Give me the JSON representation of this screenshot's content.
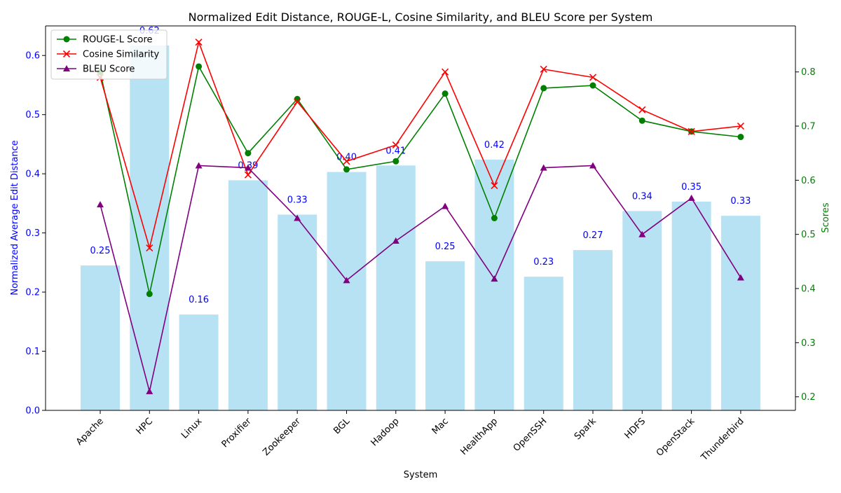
{
  "chart_data": {
    "type": "bar",
    "title": "Normalized Edit Distance, ROUGE-L, Cosine Similarity, and BLEU Score per System",
    "xlabel": "System",
    "ylabel_left": "Normalized Average Edit Distance",
    "ylabel_right": "Scores",
    "categories": [
      "Apache",
      "HPC",
      "Linux",
      "Proxifier",
      "Zookeeper",
      "BGL",
      "Hadoop",
      "Mac",
      "HealthApp",
      "OpenSSH",
      "Spark",
      "HDFS",
      "OpenStack",
      "Thunderbird"
    ],
    "bar_series": {
      "name": "Normalized Average Edit Distance",
      "color": "#87ceeb",
      "values": [
        0.245,
        0.617,
        0.162,
        0.389,
        0.331,
        0.403,
        0.414,
        0.252,
        0.424,
        0.226,
        0.271,
        0.337,
        0.353,
        0.329
      ],
      "labels": [
        "0.25",
        "0.62",
        "0.16",
        "0.39",
        "0.33",
        "0.40",
        "0.41",
        "0.25",
        "0.42",
        "0.23",
        "0.27",
        "0.34",
        "0.35",
        "0.33"
      ],
      "label_color": "#0000ff"
    },
    "line_series": [
      {
        "name": "ROUGE-L Score",
        "color": "#008000",
        "marker": "circle",
        "values": [
          0.8,
          0.39,
          0.81,
          0.65,
          0.75,
          0.62,
          0.635,
          0.76,
          0.53,
          0.77,
          0.775,
          0.71,
          0.69,
          0.68
        ]
      },
      {
        "name": "Cosine Similarity",
        "color": "#ff0000",
        "marker": "x",
        "values": [
          0.79,
          0.475,
          0.855,
          0.61,
          0.745,
          0.635,
          0.665,
          0.8,
          0.59,
          0.805,
          0.79,
          0.73,
          0.69,
          0.7
        ]
      },
      {
        "name": "BLEU Score",
        "color": "#800080",
        "marker": "triangle",
        "values": [
          0.555,
          0.21,
          0.627,
          0.623,
          0.53,
          0.415,
          0.488,
          0.552,
          0.418,
          0.623,
          0.627,
          0.5,
          0.567,
          0.42
        ]
      }
    ],
    "ylim_left": [
      0,
      0.65
    ],
    "yticks_left": [
      "0.0",
      "0.1",
      "0.2",
      "0.3",
      "0.4",
      "0.5",
      "0.6"
    ],
    "ylim_right": [
      0.175,
      0.885
    ],
    "yticks_right": [
      "0.2",
      "0.3",
      "0.4",
      "0.5",
      "0.6",
      "0.7",
      "0.8"
    ],
    "left_axis_color": "#0000ff",
    "right_axis_color": "#008000",
    "legend_position": "top-left",
    "grid": false
  }
}
